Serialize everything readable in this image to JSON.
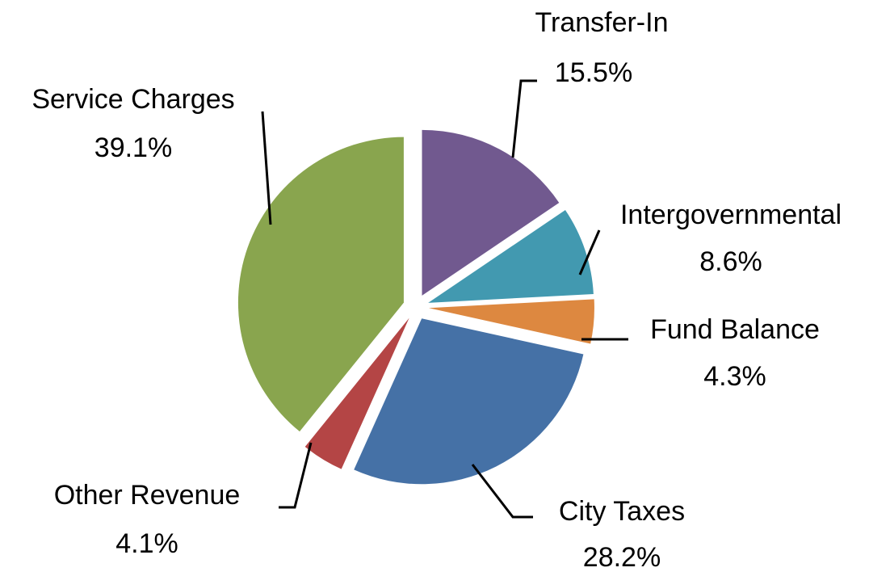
{
  "chart_data": {
    "type": "pie",
    "categories": [
      "Transfer-In",
      "Intergovernmental",
      "Fund Balance",
      "City Taxes",
      "Other Revenue",
      "Service Charges"
    ],
    "values": [
      15.5,
      8.6,
      4.3,
      28.2,
      4.1,
      39.1
    ],
    "value_labels": [
      "15.5%",
      "8.6%",
      "4.3%",
      "28.2%",
      "4.1%",
      "39.1%"
    ],
    "colors": [
      "#71598f",
      "#4299b0",
      "#dd8840",
      "#4571a6",
      "#b44545",
      "#89a54e"
    ]
  }
}
